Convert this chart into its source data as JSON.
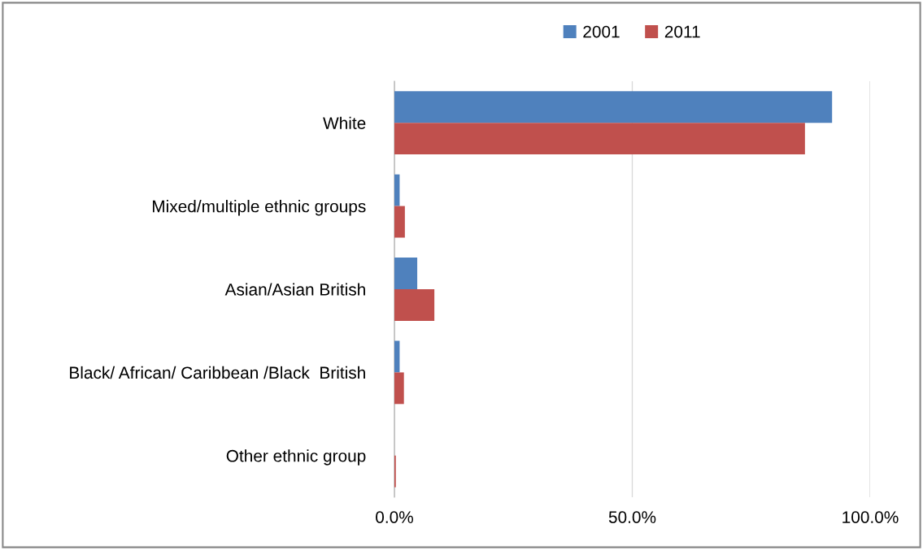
{
  "chart_data": {
    "type": "bar",
    "orientation": "horizontal",
    "categories": [
      "White",
      "Mixed/multiple ethnic groups",
      "Asian/Asian British",
      "Black/ African/ Caribbean /Black  British",
      "Other ethnic group"
    ],
    "series": [
      {
        "name": "2001",
        "color": "#4f81bd",
        "values": [
          92.0,
          1.1,
          4.8,
          1.1,
          0
        ]
      },
      {
        "name": "2011",
        "color": "#c0504d",
        "values": [
          86.3,
          2.2,
          8.4,
          2.0,
          0.3
        ]
      }
    ],
    "xlim": [
      0,
      100
    ],
    "xticks": [
      {
        "value": 0,
        "label": "0.0%"
      },
      {
        "value": 50,
        "label": "50.0%"
      },
      {
        "value": 100,
        "label": "100.0%"
      }
    ],
    "grid": "x",
    "legend": "top"
  }
}
